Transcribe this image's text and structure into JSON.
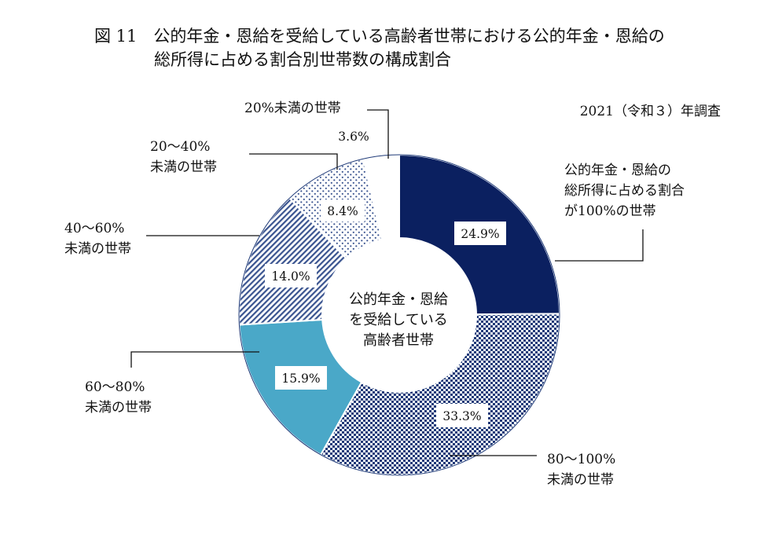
{
  "title": {
    "line1": "図 11　公的年金・恩給を受給している高齢者世帯における公的年金・恩給の",
    "line2": "総所得に占める割合別世帯数の構成割合"
  },
  "survey_note": "2021（令和３）年調査",
  "center_label": [
    "公的年金・恩給",
    "を受給している",
    "高齢者世帯"
  ],
  "colors": {
    "navy": "#0b2060",
    "teal": "#4aa8c8",
    "pattern_ink": "#1f3a78"
  },
  "chart_data": {
    "type": "pie",
    "donut": true,
    "unit": "%",
    "slices": [
      {
        "category": "100",
        "labels": [
          "公的年金・恩給の",
          "総所得に占める割合",
          "が100%の世帯"
        ],
        "value": 24.9,
        "value_label": "24.9%",
        "fill": "navy"
      },
      {
        "category": "80-100",
        "labels": [
          "80～100%",
          "未満の世帯"
        ],
        "value": 33.3,
        "value_label": "33.3%",
        "fill": "checker"
      },
      {
        "category": "60-80",
        "labels": [
          "60～80%",
          "未満の世帯"
        ],
        "value": 15.9,
        "value_label": "15.9%",
        "fill": "teal"
      },
      {
        "category": "40-60",
        "labels": [
          "40～60%",
          "未満の世帯"
        ],
        "value": 14.0,
        "value_label": "14.0%",
        "fill": "diagonal"
      },
      {
        "category": "20-40",
        "labels": [
          "20～40%",
          "未満の世帯"
        ],
        "value": 8.4,
        "value_label": "8.4%",
        "fill": "dots"
      },
      {
        "category": "lt20",
        "labels": [
          "20%未満の世帯"
        ],
        "value": 3.6,
        "value_label": "3.6%",
        "fill": "white"
      }
    ]
  }
}
